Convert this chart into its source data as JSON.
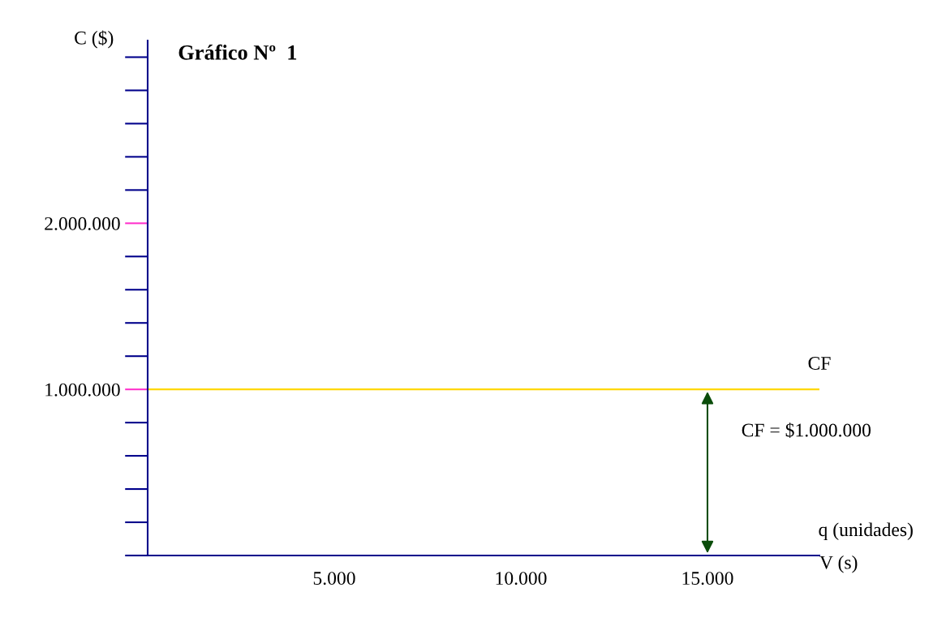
{
  "chart_data": {
    "type": "line",
    "title": "Gráfico Nº  1",
    "ylabel": "C ($)",
    "xlabel": "q (unidades)",
    "x": [
      0,
      18000
    ],
    "series": [
      {
        "name": "CF",
        "color": "#ffd700",
        "values": [
          1000000,
          1000000
        ]
      }
    ],
    "xlim": [
      0,
      18000
    ],
    "xticks": [
      {
        "value": 5000,
        "label": "5.000"
      },
      {
        "value": 10000,
        "label": "10.000"
      },
      {
        "value": 15000,
        "label": "15.000"
      }
    ],
    "ylim": [
      0,
      3100000
    ],
    "yticks": [
      {
        "value": 1000000,
        "label": "1.000.000"
      },
      {
        "value": 2000000,
        "label": "2.000.000"
      }
    ],
    "annotations": [
      {
        "text": "CF = $1.000.000",
        "x": 15000,
        "y": 1000000
      },
      "V (s)"
    ],
    "grid": false,
    "legend": false,
    "marker": "none",
    "line_style": "solid"
  }
}
